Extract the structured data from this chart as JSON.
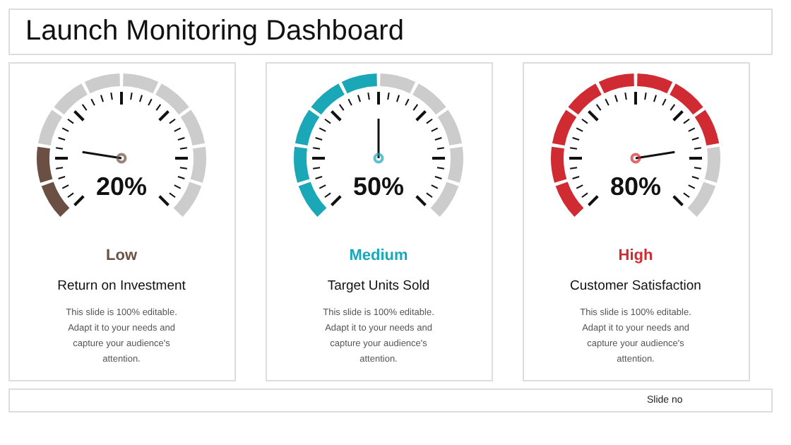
{
  "chart_data": [
    {
      "type": "other",
      "title": "Launch Monitoring Dashboard",
      "annotations": [
        "Slide no"
      ]
    },
    {
      "type": "other",
      "title": "Return on Investment",
      "categories": [
        "Low"
      ],
      "values": [
        20
      ],
      "value_labels": [
        "20%"
      ],
      "colors": [
        "#6b4f43"
      ],
      "annotations": [
        "This slide is 100% editable. Adapt it to your needs and capture your audience's attention."
      ]
    },
    {
      "type": "other",
      "title": "Target Units Sold",
      "categories": [
        "Medium"
      ],
      "values": [
        50
      ],
      "value_labels": [
        "50%"
      ],
      "colors": [
        "#1aa7b8"
      ],
      "annotations": [
        "This slide is 100% editable. Adapt it to your needs and capture your audience's attention."
      ]
    },
    {
      "type": "other",
      "title": "Customer Satisfaction",
      "categories": [
        "High"
      ],
      "values": [
        80
      ],
      "value_labels": [
        "80%"
      ],
      "colors": [
        "#d02a33"
      ],
      "annotations": [
        "This slide is 100% editable. Adapt it to your needs and capture your audience's attention."
      ]
    }
  ]
}
